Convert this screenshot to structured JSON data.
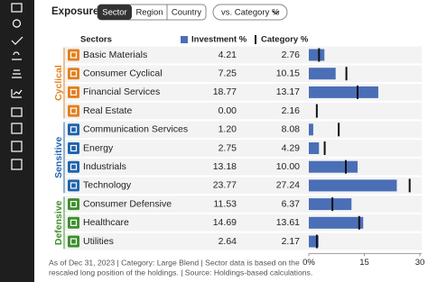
{
  "header": {
    "title": "Exposure",
    "tabs": [
      "Sector",
      "Region",
      "Country"
    ],
    "dropdown": "vs. Category %"
  },
  "chart_data": {
    "type": "hbar-compare",
    "category_header": "Sectors",
    "groups": [
      {
        "name": "Cyclical",
        "color": "#e2801e",
        "categories": [
          "Basic Materials",
          "Consumer Cyclical",
          "Financial Services",
          "Real Estate"
        ]
      },
      {
        "name": "Sensitive",
        "color": "#1f63ad",
        "categories": [
          "Communication Services",
          "Energy",
          "Industrials",
          "Technology"
        ]
      },
      {
        "name": "Defensive",
        "color": "#3e8e2c",
        "categories": [
          "Consumer Defensive",
          "Healthcare",
          "Utilities"
        ]
      }
    ],
    "series": [
      {
        "name": "Investment %",
        "color": "#4a6fb6",
        "values": [
          4.21,
          7.25,
          18.77,
          0,
          1.2,
          2.75,
          13.18,
          23.77,
          11.53,
          14.69,
          2.64
        ],
        "value_labels": [
          "4.21",
          "7.25",
          "18.77",
          "0.00",
          "1.20",
          "2.75",
          "13.18",
          "23.77",
          "11.53",
          "14.69",
          "2.64"
        ]
      },
      {
        "name": "Category %",
        "color": "#111111",
        "values": [
          2.76,
          10.15,
          13.17,
          2.16,
          8.08,
          4.29,
          10,
          27.24,
          6.37,
          13.61,
          2.17
        ],
        "value_labels": [
          "2.76",
          "10.15",
          "13.17",
          "2.16",
          "8.08",
          "4.29",
          "10.00",
          "27.24",
          "6.37",
          "13.61",
          "2.17"
        ]
      }
    ],
    "xlim": [
      0,
      30
    ],
    "xticks": [
      {
        "value": 0,
        "label": "0%"
      },
      15,
      30
    ]
  },
  "footnote": [
    "As of Dec 31, 2023 | Category: Large Blend | Sector data is based on the",
    "rescaled long position of the holdings. | Source: Holdings-based calculations."
  ]
}
